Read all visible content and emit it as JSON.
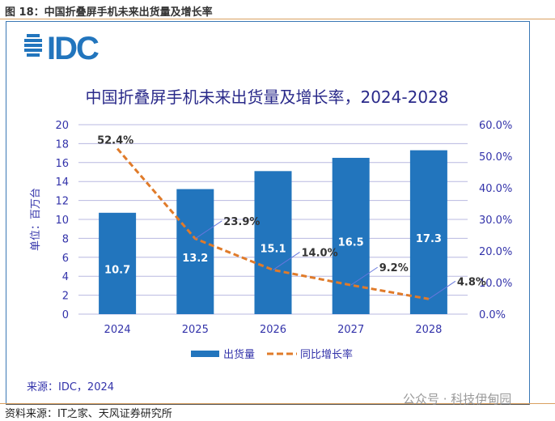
{
  "caption": "图 18：中国折叠屏手机未来出货量及增长率",
  "logo": "IDC",
  "source_note": "来源：IDC，2024",
  "footer_source": "资料来源：IT之家、天风证券研究所",
  "watermark": "公众号 · 科技伊甸园",
  "colors": {
    "bar": "#2275bd",
    "line": "#e07b2a",
    "text": "#3333aa"
  },
  "chart_data": {
    "type": "bar",
    "title": "中国折叠屏手机未来出货量及增长率，2024-2028",
    "categories": [
      "2024",
      "2025",
      "2026",
      "2027",
      "2028"
    ],
    "ylabel": "单位：百万台",
    "ylim": [
      0,
      20
    ],
    "y2lim": [
      0,
      60
    ],
    "yticks": [
      "0",
      "2",
      "4",
      "6",
      "8",
      "10",
      "12",
      "14",
      "16",
      "18",
      "20"
    ],
    "y2ticks": [
      "0.0%",
      "10.0%",
      "20.0%",
      "30.0%",
      "40.0%",
      "50.0%",
      "60.0%"
    ],
    "series": [
      {
        "name": "出货量",
        "type": "bar",
        "values": [
          10.7,
          13.2,
          15.1,
          16.5,
          17.3
        ],
        "labels": [
          "10.7",
          "13.2",
          "15.1",
          "16.5",
          "17.3"
        ]
      },
      {
        "name": "同比增长率",
        "type": "line",
        "axis": "right",
        "values": [
          52.4,
          23.9,
          14.0,
          9.2,
          4.8
        ],
        "labels": [
          "52.4%",
          "23.9%",
          "14.0%",
          "9.2%",
          "4.8%"
        ]
      }
    ],
    "legend": "bottom"
  }
}
